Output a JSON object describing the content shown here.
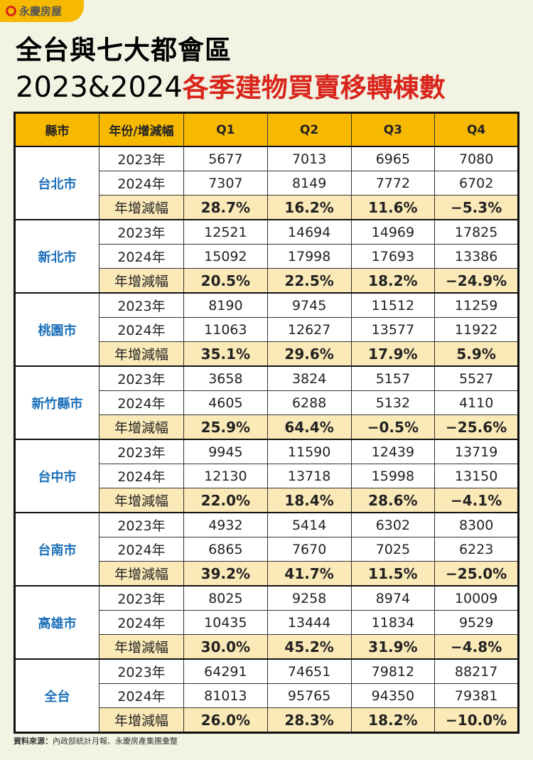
{
  "logo": {
    "text": "永慶房屋",
    "brand_color": "#d9251c"
  },
  "title": {
    "line1": "全台與七大都會區",
    "line2_year": "2023&2024",
    "line2_red": "各季建物買賣移轉棟數"
  },
  "table": {
    "headers": [
      "縣市",
      "年份/增減幅",
      "Q1",
      "Q2",
      "Q3",
      "Q4"
    ],
    "groups": [
      {
        "city": "台北市",
        "rows": [
          {
            "label": "2023年",
            "values": [
              "5677",
              "7013",
              "6965",
              "7080"
            ]
          },
          {
            "label": "2024年",
            "values": [
              "7307",
              "8149",
              "7772",
              "6702"
            ]
          },
          {
            "label": "年增減幅",
            "values": [
              "28.7%",
              "16.2%",
              "11.6%",
              "−5.3%"
            ]
          }
        ]
      },
      {
        "city": "新北市",
        "rows": [
          {
            "label": "2023年",
            "values": [
              "12521",
              "14694",
              "14969",
              "17825"
            ]
          },
          {
            "label": "2024年",
            "values": [
              "15092",
              "17998",
              "17693",
              "13386"
            ]
          },
          {
            "label": "年增減幅",
            "values": [
              "20.5%",
              "22.5%",
              "18.2%",
              "−24.9%"
            ]
          }
        ]
      },
      {
        "city": "桃園市",
        "rows": [
          {
            "label": "2023年",
            "values": [
              "8190",
              "9745",
              "11512",
              "11259"
            ]
          },
          {
            "label": "2024年",
            "values": [
              "11063",
              "12627",
              "13577",
              "11922"
            ]
          },
          {
            "label": "年增減幅",
            "values": [
              "35.1%",
              "29.6%",
              "17.9%",
              "5.9%"
            ]
          }
        ]
      },
      {
        "city": "新竹縣市",
        "rows": [
          {
            "label": "2023年",
            "values": [
              "3658",
              "3824",
              "5157",
              "5527"
            ]
          },
          {
            "label": "2024年",
            "values": [
              "4605",
              "6288",
              "5132",
              "4110"
            ]
          },
          {
            "label": "年增減幅",
            "values": [
              "25.9%",
              "64.4%",
              "−0.5%",
              "−25.6%"
            ]
          }
        ]
      },
      {
        "city": "台中市",
        "rows": [
          {
            "label": "2023年",
            "values": [
              "9945",
              "11590",
              "12439",
              "13719"
            ]
          },
          {
            "label": "2024年",
            "values": [
              "12130",
              "13718",
              "15998",
              "13150"
            ]
          },
          {
            "label": "年增減幅",
            "values": [
              "22.0%",
              "18.4%",
              "28.6%",
              "−4.1%"
            ]
          }
        ]
      },
      {
        "city": "台南市",
        "rows": [
          {
            "label": "2023年",
            "values": [
              "4932",
              "5414",
              "6302",
              "8300"
            ]
          },
          {
            "label": "2024年",
            "values": [
              "6865",
              "7670",
              "7025",
              "6223"
            ]
          },
          {
            "label": "年增減幅",
            "values": [
              "39.2%",
              "41.7%",
              "11.5%",
              "−25.0%"
            ]
          }
        ]
      },
      {
        "city": "高雄市",
        "rows": [
          {
            "label": "2023年",
            "values": [
              "8025",
              "9258",
              "8974",
              "10009"
            ]
          },
          {
            "label": "2024年",
            "values": [
              "10435",
              "13444",
              "11834",
              "9529"
            ]
          },
          {
            "label": "年增減幅",
            "values": [
              "30.0%",
              "45.2%",
              "31.9%",
              "−4.8%"
            ]
          }
        ]
      },
      {
        "city": "全台",
        "rows": [
          {
            "label": "2023年",
            "values": [
              "64291",
              "74651",
              "79812",
              "88217"
            ]
          },
          {
            "label": "2024年",
            "values": [
              "81013",
              "95765",
              "94350",
              "79381"
            ]
          },
          {
            "label": "年增減幅",
            "values": [
              "26.0%",
              "28.3%",
              "18.2%",
              "−10.0%"
            ]
          }
        ]
      }
    ]
  },
  "source": {
    "label": "資料來源：",
    "text": "內政部統計月報、永慶房產集團彙整"
  }
}
